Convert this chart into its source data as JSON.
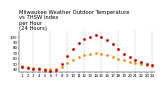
{
  "title": "Milwaukee Weather Outdoor Temperature\nvs THSW Index\nper Hour\n(24 Hours)",
  "hours": [
    1,
    2,
    3,
    4,
    5,
    6,
    7,
    8,
    9,
    10,
    11,
    12,
    13,
    14,
    15,
    16,
    17,
    18,
    19,
    20,
    21,
    22,
    23,
    24
  ],
  "temp": [
    46,
    44,
    43,
    42,
    41,
    40,
    41,
    44,
    52,
    58,
    63,
    67,
    69,
    70,
    68,
    66,
    63,
    60,
    57,
    54,
    52,
    50,
    48,
    47
  ],
  "thsw": [
    44,
    42,
    41,
    40,
    39,
    38,
    39,
    50,
    65,
    78,
    88,
    95,
    100,
    103,
    99,
    94,
    86,
    77,
    68,
    62,
    57,
    53,
    50,
    48
  ],
  "temp_color": "#ff8800",
  "thsw_color": "#cc0000",
  "bg_color": "#ffffff",
  "grid_color": "#888888",
  "ylim_min": 35,
  "ylim_max": 110,
  "ytick_vals": [
    40,
    50,
    60,
    70,
    80,
    90,
    100
  ],
  "vgrid_hours": [
    3,
    6,
    9,
    12,
    15,
    18,
    21,
    24
  ],
  "title_fontsize": 3.8,
  "tick_fontsize": 2.8,
  "marker_size": 0.9
}
